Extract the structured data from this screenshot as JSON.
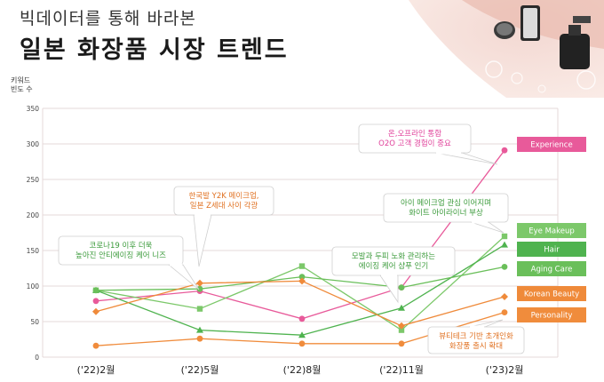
{
  "header": {
    "subtitle": "빅데이터를 통해 바라본",
    "title": "일본 화장품 시장 트렌드"
  },
  "chart_data": {
    "type": "line",
    "ylabel": [
      "키워드",
      "빈도 수"
    ],
    "ylim": [
      0,
      350
    ],
    "yticks": [
      0,
      50,
      100,
      150,
      200,
      250,
      300,
      350
    ],
    "categories": [
      "('22)2월",
      "('22)5월",
      "('22)8월",
      "('22)11월",
      "('23)2월"
    ],
    "grid": "horizontal",
    "series": [
      {
        "name": "Experience",
        "color": "#e85a9a",
        "values": [
          79,
          93,
          54,
          98,
          291
        ]
      },
      {
        "name": "Eye Makeup",
        "color": "#7cc86a",
        "values": [
          94,
          68,
          128,
          38,
          170
        ]
      },
      {
        "name": "Hair",
        "color": "#4fb34f",
        "values": [
          94,
          38,
          31,
          69,
          158
        ]
      },
      {
        "name": "Aging Care",
        "color": "#6abf5a",
        "values": [
          94,
          96,
          113,
          98,
          127
        ]
      },
      {
        "name": "Korean Beauty",
        "color": "#ef8a3a",
        "values": [
          64,
          104,
          107,
          44,
          85
        ]
      },
      {
        "name": "Personality",
        "color": "#f08c3c",
        "values": [
          16,
          26,
          19,
          19,
          63
        ]
      }
    ],
    "annotations": [
      {
        "lines": [
          "온,오프라인 통합",
          "O2O 고객 경험이 중요"
        ],
        "color": "#e0409a"
      },
      {
        "lines": [
          "한국발 Y2K 메이크업,",
          "일본 Z세대 사이 각광"
        ],
        "color": "#e07020"
      },
      {
        "lines": [
          "코로나19 이후 더욱",
          "높아진 안티에이징 케어 니즈"
        ],
        "color": "#3a9a3a"
      },
      {
        "lines": [
          "아이 메이크업 관심 이어지며",
          "화이트 아이라이너 부상"
        ],
        "color": "#3a9a3a"
      },
      {
        "lines": [
          "모발과 두피 노화 관리하는",
          "에이징 케어 샴푸 인기"
        ],
        "color": "#3a9a3a"
      },
      {
        "lines": [
          "뷰티테크 기반 초개인화",
          "화장품 출시 확대"
        ],
        "color": "#e07020"
      }
    ]
  }
}
